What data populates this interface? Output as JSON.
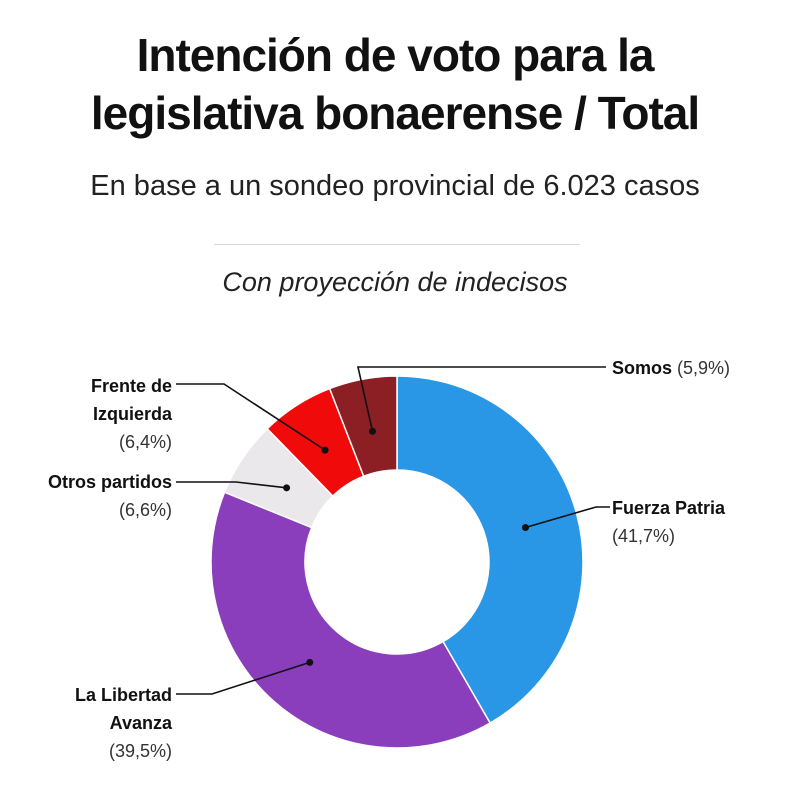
{
  "chart_data": {
    "type": "pie",
    "variant": "donut",
    "title_lines": [
      "Intención de voto para la",
      "legislativa bonaerense / Total"
    ],
    "subtitle": "En base a un sondeo provincial de 6.023 casos",
    "note": "Con proyección de indecisos",
    "slices": [
      {
        "id": "fuerza",
        "label_lines": [
          "Fuerza Patria"
        ],
        "value": 41.7,
        "value_label": "(41,7%)",
        "color": "#2a97e6"
      },
      {
        "id": "lla",
        "label_lines": [
          "La Libertad",
          "Avanza"
        ],
        "value": 39.5,
        "value_label": "(39,5%)",
        "color": "#8a3ebc"
      },
      {
        "id": "otros",
        "label_lines": [
          "Otros partidos"
        ],
        "value": 6.6,
        "value_label": "(6,6%)",
        "color": "#ebe8ec"
      },
      {
        "id": "fit",
        "label_lines": [
          "Frente de",
          "Izquierda"
        ],
        "value": 6.4,
        "value_label": "(6,4%)",
        "color": "#f00a0a"
      },
      {
        "id": "somos",
        "label_lines": [
          "Somos"
        ],
        "value": 5.9,
        "value_label": "(5,9%)",
        "color": "#8b1f24"
      }
    ]
  }
}
